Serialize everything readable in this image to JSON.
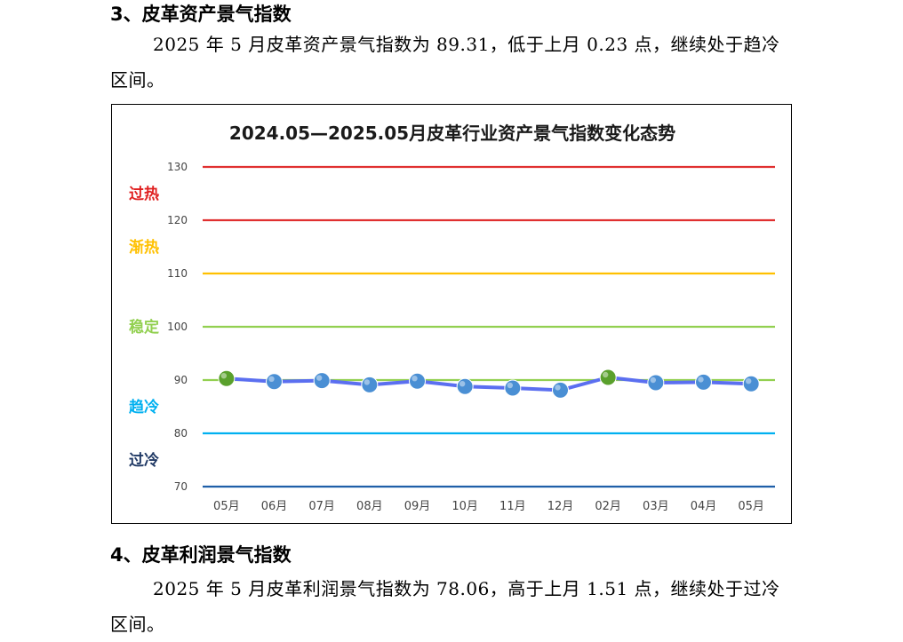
{
  "section3": {
    "heading": "3、皮革资产景气指数",
    "paragraph": "2025 年 5 月皮革资产景气指数为 89.31，低于上月 0.23 点，继续处于趋冷区间。"
  },
  "section4": {
    "heading": "4、皮革利润景气指数",
    "paragraph": "2025 年 5 月皮革利润景气指数为 78.06，高于上月 1.51 点，继续处于过冷区间。"
  },
  "chart_data": {
    "type": "line",
    "title": "2024.05—2025.05月皮革行业资产景气指数变化态势",
    "categories": [
      "05月",
      "06月",
      "07月",
      "08月",
      "09月",
      "10月",
      "11月",
      "12月",
      "02月",
      "03月",
      "04月",
      "05月"
    ],
    "series": [
      {
        "values": [
          90.3,
          89.7,
          89.9,
          89.1,
          89.8,
          88.8,
          88.5,
          88.1,
          90.5,
          89.5,
          89.6,
          89.3
        ]
      }
    ],
    "point_colors": [
      "#5aa02c",
      "#4a8fd4",
      "#4a8fd4",
      "#4a8fd4",
      "#4a8fd4",
      "#4a8fd4",
      "#4a8fd4",
      "#4a8fd4",
      "#5aa02c",
      "#4a8fd4",
      "#4a8fd4",
      "#4a8fd4"
    ],
    "line_color": "#5b6ff0",
    "ylim": [
      70,
      130
    ],
    "yticks": [
      70,
      80,
      90,
      100,
      110,
      120,
      130
    ],
    "reference_lines": [
      {
        "value": 130,
        "color": "#e03030"
      },
      {
        "value": 120,
        "color": "#e03030"
      },
      {
        "value": 110,
        "color": "#ffc000"
      },
      {
        "value": 100,
        "color": "#92d050"
      },
      {
        "value": 90,
        "color": "#92d050"
      },
      {
        "value": 80,
        "color": "#00b0f0"
      },
      {
        "value": 70,
        "color": "#1f5fa8"
      }
    ],
    "zones": [
      {
        "label": "过热",
        "value": 125,
        "color": "#e02020"
      },
      {
        "label": "渐热",
        "value": 115,
        "color": "#ffc000"
      },
      {
        "label": "稳定",
        "value": 100,
        "color": "#92d050"
      },
      {
        "label": "趋冷",
        "value": 85,
        "color": "#00b0f0"
      },
      {
        "label": "过冷",
        "value": 75,
        "color": "#1f3864"
      }
    ],
    "grid": false,
    "legend": "none"
  }
}
